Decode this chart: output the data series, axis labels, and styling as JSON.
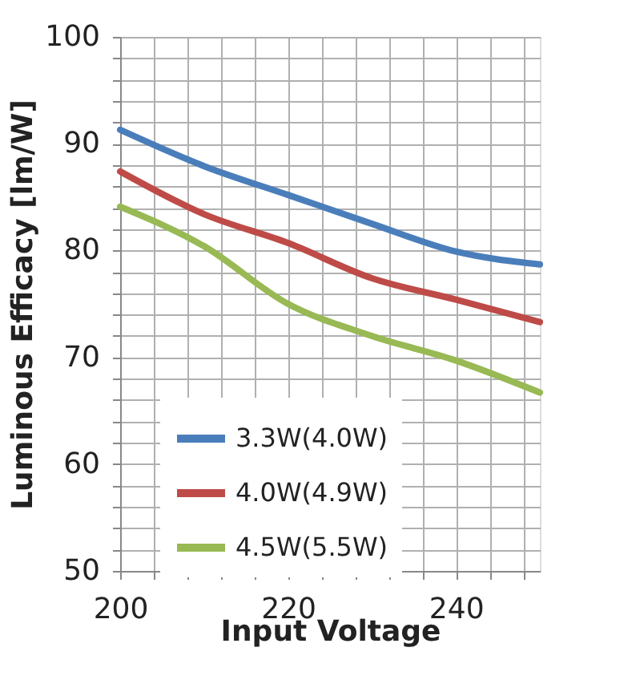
{
  "chart_data": {
    "type": "line",
    "xlabel": "Input Voltage",
    "ylabel": "Luminous Efficacy [lm/W]",
    "x": [
      200,
      210,
      220,
      230,
      240,
      250
    ],
    "series": [
      {
        "name": "3.3W(4.0W)",
        "color": "#4a7ebb",
        "values": [
          91.3,
          87.9,
          85.2,
          82.5,
          79.9,
          78.7
        ]
      },
      {
        "name": "4.0W(4.9W)",
        "color": "#be4b48",
        "values": [
          87.4,
          83.4,
          80.7,
          77.4,
          75.4,
          73.3
        ]
      },
      {
        "name": "4.5W(5.5W)",
        "color": "#98b954",
        "values": [
          84.1,
          80.4,
          75.0,
          72.0,
          69.7,
          66.7
        ]
      }
    ],
    "xlim": [
      200,
      250
    ],
    "xticks": [
      200,
      {
        "value": 204,
        "label": null
      },
      {
        "value": 208,
        "label": null
      },
      {
        "value": 212,
        "label": null
      },
      {
        "value": 216,
        "label": null
      },
      220,
      {
        "value": 224,
        "label": null
      },
      {
        "value": 228,
        "label": null
      },
      {
        "value": 232,
        "label": null
      },
      {
        "value": 236,
        "label": null
      },
      240,
      {
        "value": 244,
        "label": null
      },
      {
        "value": 248,
        "label": null
      }
    ],
    "ylim": [
      50,
      100
    ],
    "yticks": [
      50,
      {
        "value": 52,
        "label": null
      },
      {
        "value": 54,
        "label": null
      },
      {
        "value": 56,
        "label": null
      },
      {
        "value": 58,
        "label": null
      },
      60,
      {
        "value": 62,
        "label": null
      },
      {
        "value": 64,
        "label": null
      },
      {
        "value": 66,
        "label": null
      },
      {
        "value": 68,
        "label": null
      },
      70,
      {
        "value": 72,
        "label": null
      },
      {
        "value": 74,
        "label": null
      },
      {
        "value": 76,
        "label": null
      },
      {
        "value": 78,
        "label": null
      },
      80,
      {
        "value": 82,
        "label": null
      },
      {
        "value": 84,
        "label": null
      },
      {
        "value": 86,
        "label": null
      },
      {
        "value": 88,
        "label": null
      },
      90,
      {
        "value": 92,
        "label": null
      },
      {
        "value": 94,
        "label": null
      },
      {
        "value": 96,
        "label": null
      },
      {
        "value": 98,
        "label": null
      },
      100
    ],
    "grid": true,
    "legend": "bottom left",
    "marker": "none",
    "line_style": "solid"
  }
}
